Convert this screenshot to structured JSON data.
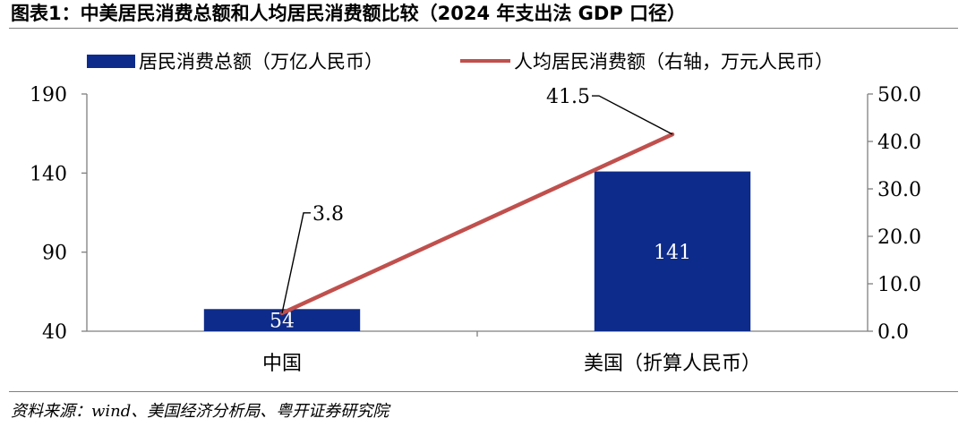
{
  "title": "图表1：中美居民消费总额和人均居民消费额比较（2024 年支出法 GDP 口径）",
  "source": "资料来源：wind、美国经济分析局、粤开证券研究院",
  "colors": {
    "bar": "#0d2b8a",
    "line": "#c0504d",
    "axis": "#7f7f7f",
    "bar_label": "#ffffff"
  },
  "chart_data": {
    "type": "bar+line",
    "categories": [
      "中国",
      "美国（折算人民币）"
    ],
    "series": [
      {
        "name": "居民消费总额（万亿人民币）",
        "type": "bar",
        "axis": "left",
        "values": [
          54,
          141
        ],
        "labels": [
          "54",
          "141"
        ]
      },
      {
        "name": "人均居民消费额（右轴，万元人民币）",
        "type": "line",
        "axis": "right",
        "values": [
          3.8,
          41.5
        ],
        "labels": [
          "3.8",
          "41.5"
        ]
      }
    ],
    "y_left": {
      "range": [
        40,
        190
      ],
      "ticks": [
        "40",
        "90",
        "140",
        "190"
      ]
    },
    "y_right": {
      "range": [
        0,
        50
      ],
      "ticks": [
        "0.0",
        "10.0",
        "20.0",
        "30.0",
        "40.0",
        "50.0"
      ]
    },
    "legend": "top",
    "grid": false
  }
}
